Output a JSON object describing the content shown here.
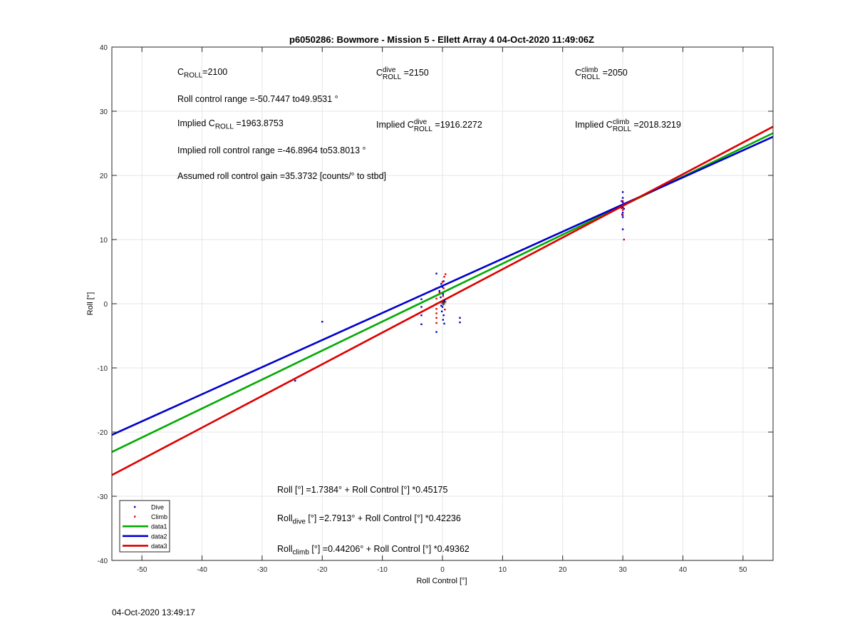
{
  "figure": {
    "footer_timestamp": "04-Oct-2020 13:49:17"
  },
  "annotations": {
    "c_roll": {
      "base": "C",
      "sub": "ROLL",
      "value": "=2100"
    },
    "c_roll_dive": {
      "base": "C",
      "sup": "dive",
      "sub": "ROLL",
      "value": " =2150"
    },
    "c_roll_climb": {
      "base": "C",
      "sup": "climb",
      "sub": "ROLL",
      "value": " =2050"
    },
    "roll_control_range": "Roll control range =-50.7447 to49.9531 °",
    "implied_c_roll": {
      "prefix": "Implied ",
      "base": "C",
      "sub": "ROLL",
      "value": " =1963.8753"
    },
    "implied_c_roll_dive": {
      "prefix": "Implied ",
      "base": "C",
      "sup": "dive",
      "sub": "ROLL",
      "value": " =1916.2272"
    },
    "implied_c_roll_climb": {
      "prefix": "Implied ",
      "base": "C",
      "sup": "climb",
      "sub": "ROLL",
      "value": " =2018.3219"
    },
    "implied_range": "Implied roll control range =-46.8964 to53.8013 °",
    "assumed_gain": "Assumed roll control gain =35.3732 [counts/° to stbd]",
    "fit_all": {
      "lhs": "Roll",
      "lhs_sub": "",
      "rhs": " [°] =1.7384° + Roll Control [°] *0.45175"
    },
    "fit_dive": {
      "lhs": "Roll",
      "lhs_sub": "dive",
      "rhs": " [°] =2.7913° + Roll Control [°] *0.42236"
    },
    "fit_climb": {
      "lhs": "Roll",
      "lhs_sub": "climb",
      "rhs": " [°] =0.44206° + Roll Control [°] *0.49362"
    }
  },
  "chart_data": {
    "type": "scatter",
    "title": "p6050286: Bowmore - Mission 5 - Ellett Array 4 04-Oct-2020 11:49:06Z",
    "xlabel": "Roll Control [°]",
    "ylabel": "Roll [°]",
    "xlim": [
      -55,
      55
    ],
    "ylim": [
      -40,
      40
    ],
    "xticks": [
      -50,
      -40,
      -30,
      -20,
      -10,
      0,
      10,
      20,
      30,
      40,
      50
    ],
    "yticks": [
      -40,
      -30,
      -20,
      -10,
      0,
      10,
      20,
      30,
      40
    ],
    "grid": true,
    "legend_position": "bottom-left",
    "series": [
      {
        "name": "Dive",
        "kind": "points",
        "color": "#0000cc",
        "points": [
          [
            -20,
            -2.8
          ],
          [
            -24.5,
            -12
          ],
          [
            -1,
            4.7
          ],
          [
            -1,
            2.4
          ],
          [
            -0.5,
            2
          ],
          [
            -0.2,
            3.1
          ],
          [
            0,
            2.6
          ],
          [
            0.2,
            3.5
          ],
          [
            0.1,
            1.5
          ],
          [
            -0.3,
            1
          ],
          [
            0,
            -0.5
          ],
          [
            -0.1,
            -1.2
          ],
          [
            0.2,
            -1.8
          ],
          [
            0.1,
            -2.5
          ],
          [
            0.3,
            -3.1
          ],
          [
            -3.5,
            0.7
          ],
          [
            -3.5,
            -0.5
          ],
          [
            -3.5,
            -1.8
          ],
          [
            -3.5,
            -3.2
          ],
          [
            -1,
            -4.4
          ],
          [
            -0.2,
            -0.3
          ],
          [
            0.3,
            0.5
          ],
          [
            2.9,
            -2.2
          ],
          [
            2.9,
            -2.9
          ],
          [
            30,
            17.4
          ],
          [
            30,
            16.5
          ],
          [
            30,
            15.8
          ],
          [
            30,
            15
          ],
          [
            30,
            14.2
          ],
          [
            30,
            13.5
          ],
          [
            30,
            11.6
          ],
          [
            29.8,
            16
          ],
          [
            30.2,
            14.8
          ],
          [
            29.9,
            13.9
          ]
        ]
      },
      {
        "name": "Climb",
        "kind": "points",
        "color": "#dd0000",
        "points": [
          [
            -1,
            0.8
          ],
          [
            -1,
            0
          ],
          [
            -1,
            -0.8
          ],
          [
            -1,
            -1.5
          ],
          [
            -1,
            -2.2
          ],
          [
            -1,
            -3
          ],
          [
            -0.5,
            1.8
          ],
          [
            0,
            3.4
          ],
          [
            0.3,
            4.2
          ],
          [
            0.5,
            4.6
          ],
          [
            0.2,
            2.4
          ],
          [
            0.1,
            1.2
          ],
          [
            0.3,
            0.3
          ],
          [
            0.4,
            -0.9
          ],
          [
            30,
            16
          ],
          [
            30,
            15.3
          ],
          [
            30,
            14.6
          ],
          [
            30,
            13.8
          ],
          [
            30.2,
            10
          ],
          [
            29.8,
            14.9
          ]
        ]
      },
      {
        "name": "data1",
        "kind": "line",
        "color": "#00aa00",
        "intercept": 1.7384,
        "slope": 0.45175
      },
      {
        "name": "data2",
        "kind": "line",
        "color": "#0000cc",
        "intercept": 2.7913,
        "slope": 0.42236
      },
      {
        "name": "data3",
        "kind": "line",
        "color": "#dd0000",
        "intercept": 0.44206,
        "slope": 0.49362
      }
    ],
    "extra_points": [
      {
        "color": "#000000",
        "points": [
          [
            0,
            0
          ],
          [
            0.2,
            -0.2
          ],
          [
            0.4,
            0.1
          ]
        ]
      }
    ]
  }
}
